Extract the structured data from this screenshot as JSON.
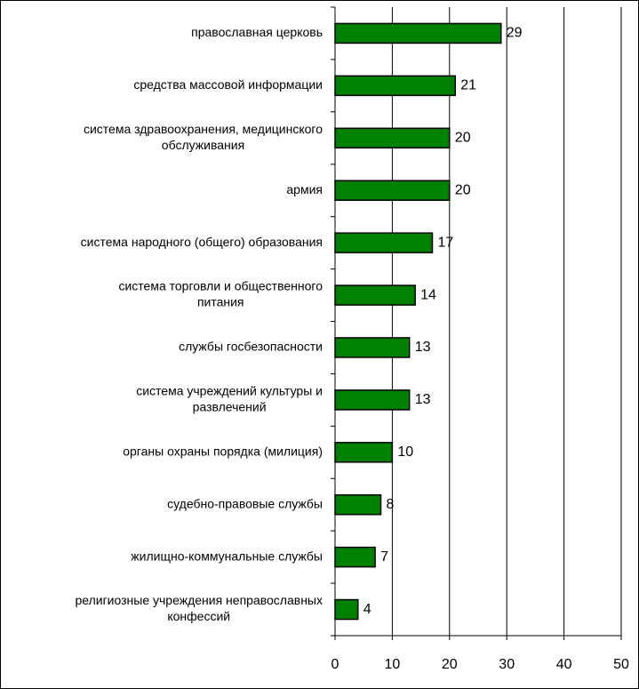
{
  "chart_data": {
    "type": "barh",
    "categories": [
      [
        "православная церковь"
      ],
      [
        "средства массовой информации"
      ],
      [
        "система здравоохранения, медицинского",
        "обслуживания"
      ],
      [
        "армия"
      ],
      [
        "система народного (общего) образования"
      ],
      [
        "система торговли и общественного",
        "питания"
      ],
      [
        "службы госбезопасности"
      ],
      [
        "система учреждений культуры и",
        "развлечений"
      ],
      [
        "органы охраны порядка (милиция)"
      ],
      [
        "судебно-правовые службы"
      ],
      [
        "жилищно-коммунальные службы"
      ],
      [
        "религиозные учреждения неправославных",
        "конфессий"
      ]
    ],
    "values": [
      29,
      21,
      20,
      20,
      17,
      14,
      13,
      13,
      10,
      8,
      7,
      4
    ],
    "color": "#008000",
    "xlim": [
      0,
      50
    ],
    "xticks": [
      0,
      10,
      20,
      30,
      40,
      50
    ],
    "grid": true
  }
}
